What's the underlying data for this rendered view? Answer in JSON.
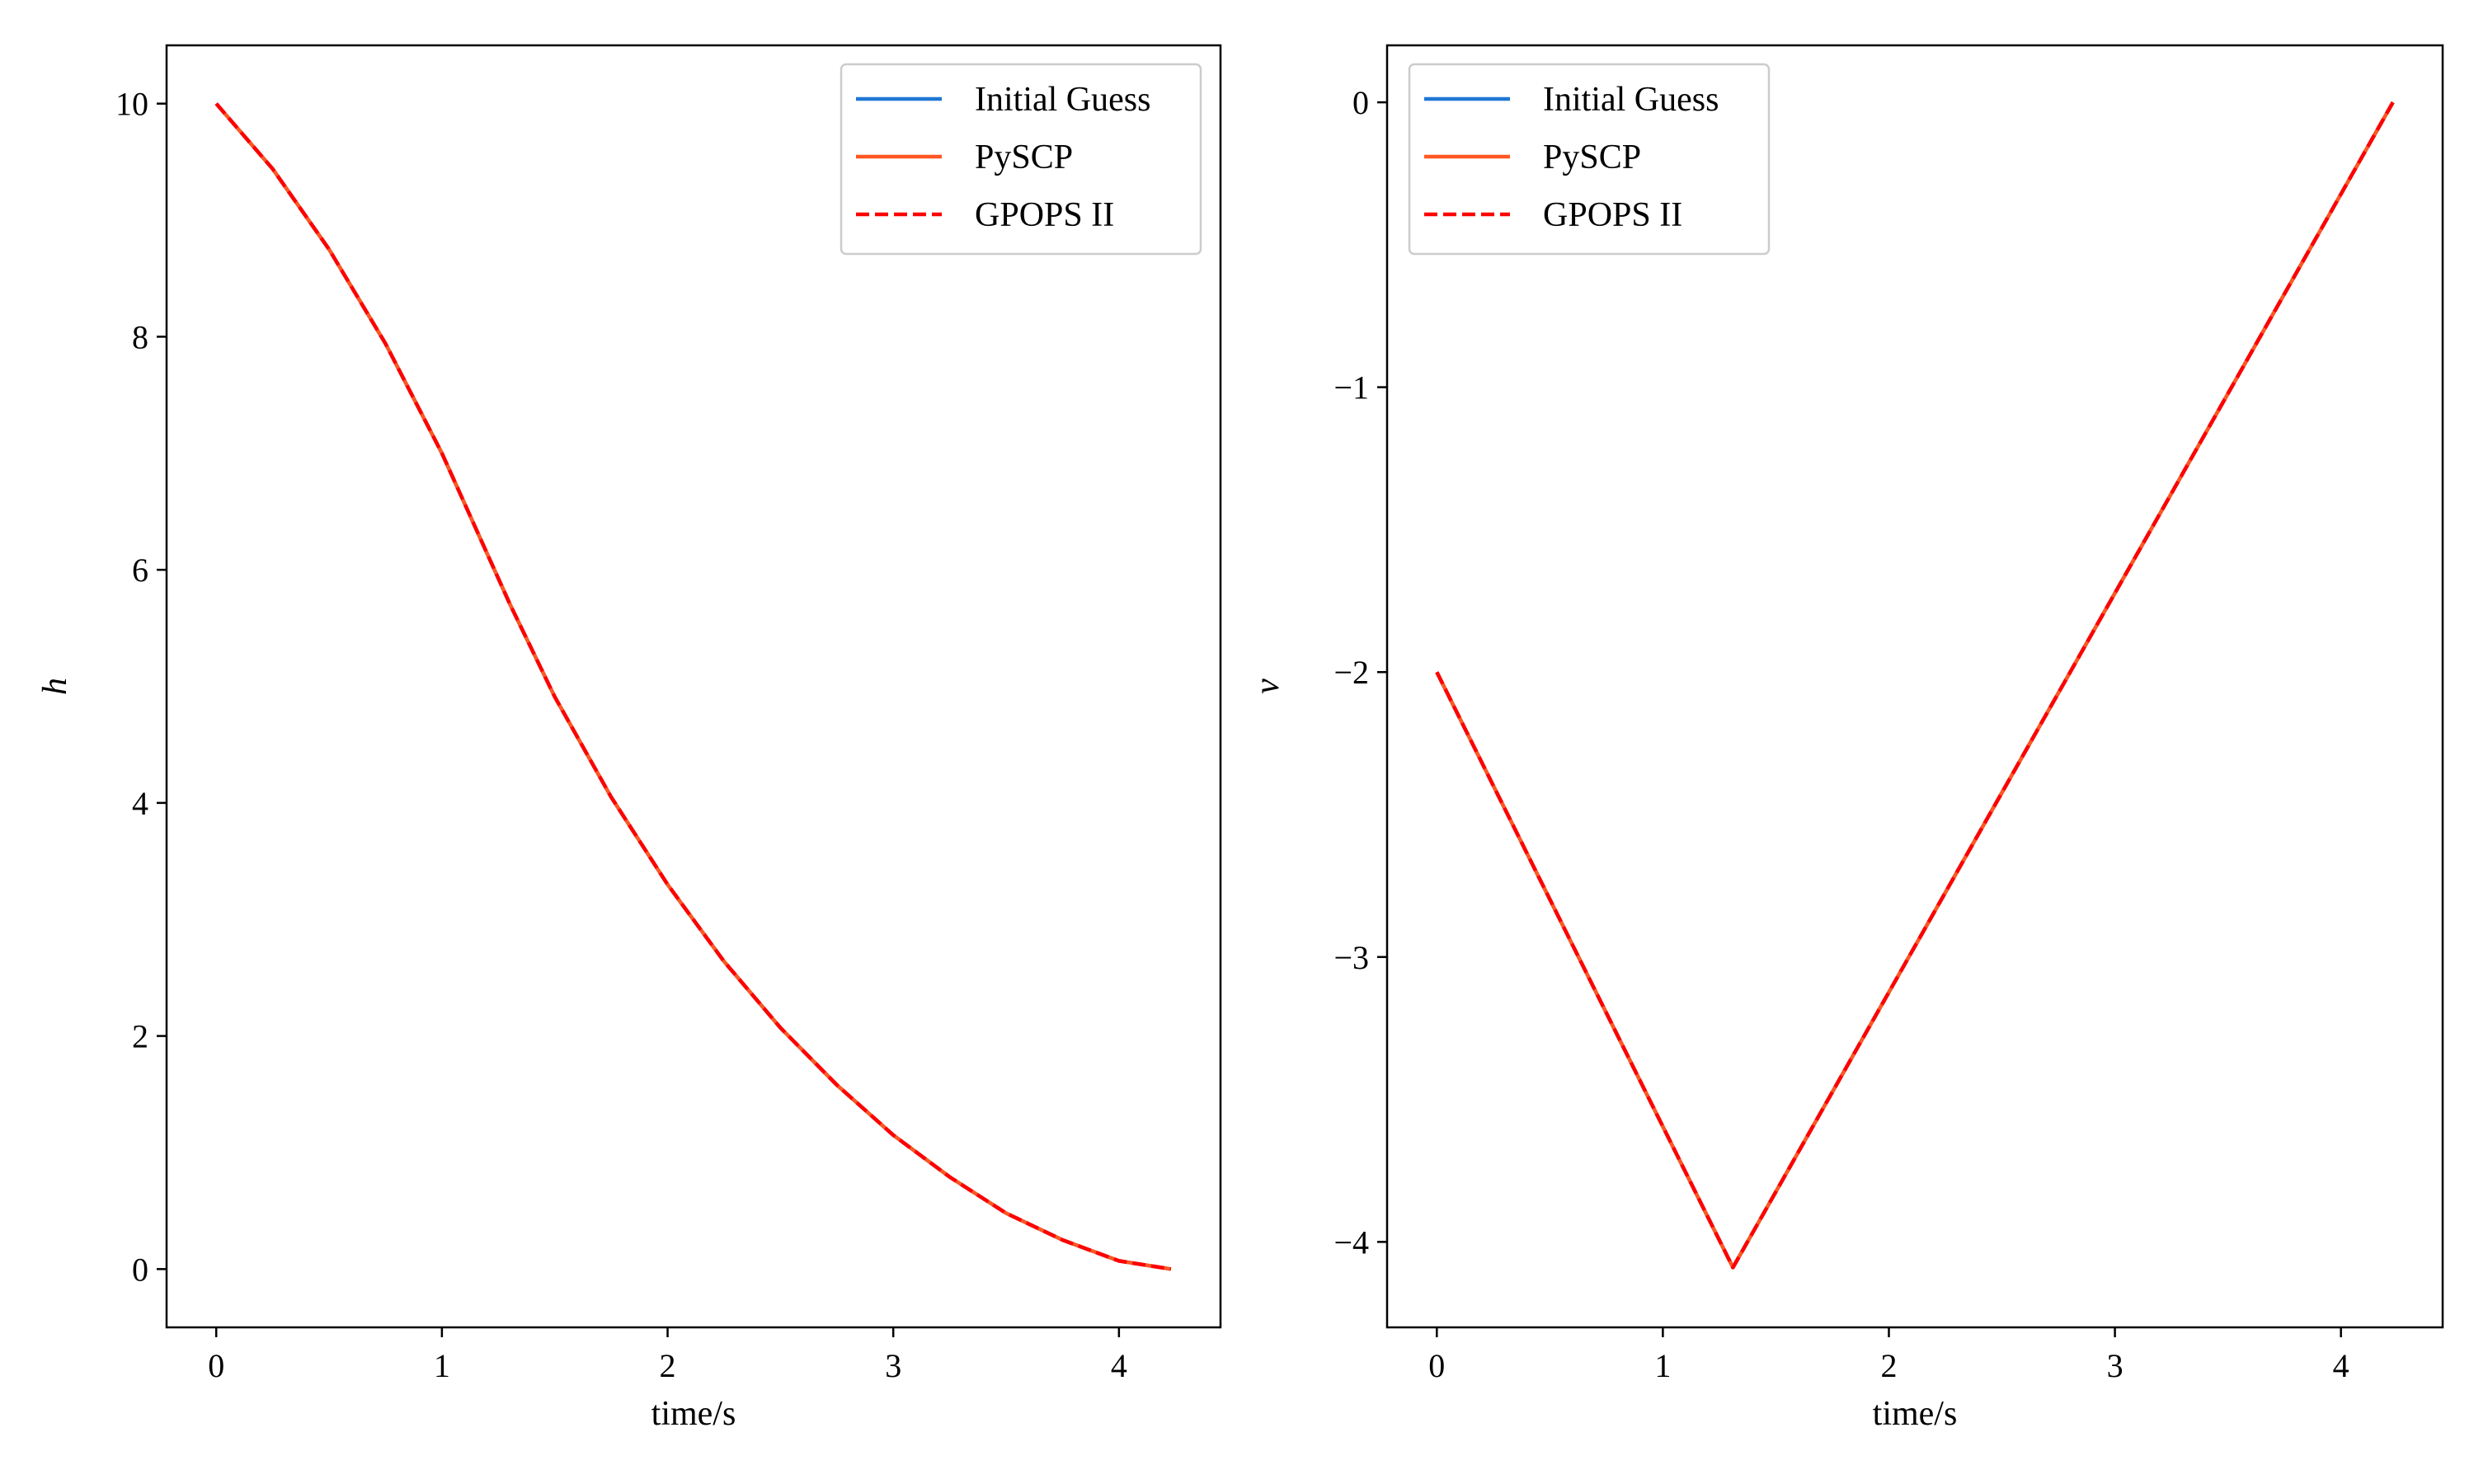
{
  "colors": {
    "initial_guess": "#1f77d4",
    "pyscp": "#ff5722",
    "gpops": "#ff0000",
    "axes": "#000000",
    "legend_border": "#cccccc"
  },
  "chart_data": [
    {
      "type": "line",
      "xlabel": "time/s",
      "ylabel": "h",
      "xlim": [
        -0.22,
        4.45
      ],
      "ylim": [
        -0.5,
        10.5
      ],
      "xticks": [
        0,
        1,
        2,
        3,
        4
      ],
      "xtick_labels": [
        "0",
        "1",
        "2",
        "3",
        "4"
      ],
      "yticks": [
        0,
        2,
        4,
        6,
        8,
        10
      ],
      "ytick_labels": [
        "0",
        "2",
        "4",
        "6",
        "8",
        "10"
      ],
      "grid": false,
      "legend_position": "top-right",
      "series": [
        {
          "name": "Initial Guess",
          "style": "solid",
          "x": [
            0,
            0.25,
            0.5,
            0.75,
            1.0,
            1.3,
            1.5,
            1.75,
            2.0,
            2.25,
            2.5,
            2.75,
            3.0,
            3.25,
            3.5,
            3.75,
            4.0,
            4.23
          ],
          "y": [
            10.0,
            9.44,
            8.75,
            7.94,
            7.0,
            5.71,
            4.91,
            4.05,
            3.3,
            2.64,
            2.07,
            1.58,
            1.15,
            0.79,
            0.48,
            0.25,
            0.07,
            0.0
          ]
        },
        {
          "name": "PySCP",
          "style": "solid",
          "x": [
            0,
            0.25,
            0.5,
            0.75,
            1.0,
            1.3,
            1.5,
            1.75,
            2.0,
            2.25,
            2.5,
            2.75,
            3.0,
            3.25,
            3.5,
            3.75,
            4.0,
            4.23
          ],
          "y": [
            10.0,
            9.44,
            8.75,
            7.94,
            7.0,
            5.71,
            4.91,
            4.05,
            3.3,
            2.64,
            2.07,
            1.58,
            1.15,
            0.79,
            0.48,
            0.25,
            0.07,
            0.0
          ]
        },
        {
          "name": "GPOPS II",
          "style": "dashed",
          "x": [
            0,
            0.25,
            0.5,
            0.75,
            1.0,
            1.3,
            1.5,
            1.75,
            2.0,
            2.25,
            2.5,
            2.75,
            3.0,
            3.25,
            3.5,
            3.75,
            4.0,
            4.23
          ],
          "y": [
            10.0,
            9.44,
            8.75,
            7.94,
            7.0,
            5.71,
            4.91,
            4.05,
            3.3,
            2.64,
            2.07,
            1.58,
            1.15,
            0.79,
            0.48,
            0.25,
            0.07,
            0.0
          ]
        }
      ]
    },
    {
      "type": "line",
      "xlabel": "time/s",
      "ylabel": "v",
      "xlim": [
        -0.22,
        4.45
      ],
      "ylim": [
        -4.3,
        0.2
      ],
      "xticks": [
        0,
        1,
        2,
        3,
        4
      ],
      "xtick_labels": [
        "0",
        "1",
        "2",
        "3",
        "4"
      ],
      "yticks": [
        0,
        -1,
        -2,
        -3,
        -4
      ],
      "ytick_labels": [
        "0",
        "−1",
        "−2",
        "−3",
        "−4"
      ],
      "grid": false,
      "legend_position": "top-left",
      "series": [
        {
          "name": "Initial Guess",
          "style": "solid",
          "x": [
            0,
            1.31,
            4.23
          ],
          "y": [
            -2.0,
            -4.09,
            0.0
          ]
        },
        {
          "name": "PySCP",
          "style": "solid",
          "x": [
            0,
            1.31,
            4.23
          ],
          "y": [
            -2.0,
            -4.09,
            0.0
          ]
        },
        {
          "name": "GPOPS II",
          "style": "dashed",
          "x": [
            0,
            1.31,
            4.23
          ],
          "y": [
            -2.0,
            -4.09,
            0.0
          ]
        }
      ]
    }
  ]
}
